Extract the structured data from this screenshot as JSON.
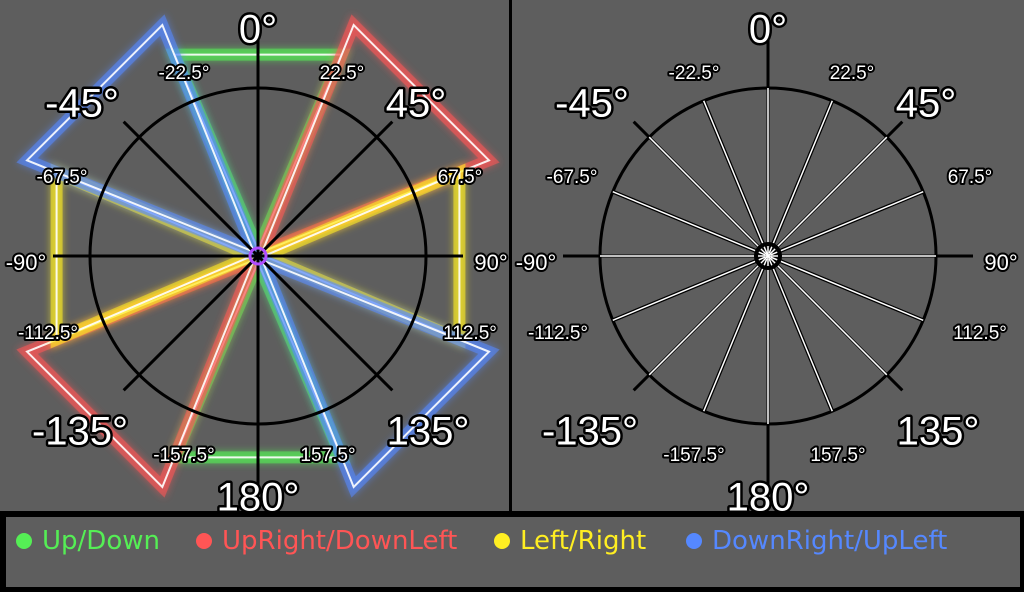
{
  "colors": {
    "up_down": "#55ee55",
    "upright_downleft": "#ff5555",
    "left_right": "#ffee22",
    "downright_upleft": "#5588ff",
    "panel_bg": "#5e5e5e",
    "border": "#000000"
  },
  "angle_labels": {
    "a0": "0°",
    "a45": "45°",
    "am45": "-45°",
    "a90": "90°",
    "am90": "-90°",
    "a135": "135°",
    "am135": "-135°",
    "a180": "180°",
    "a22_5": "22.5°",
    "am22_5": "-22.5°",
    "a67_5": "67.5°",
    "am67_5": "-67.5°",
    "a112_5": "112.5°",
    "am112_5": "-112.5°",
    "a157_5": "157.5°",
    "am157_5": "-157.5°"
  },
  "legend": {
    "items": [
      {
        "label": "Up/Down",
        "color_key": "up_down"
      },
      {
        "label": "UpRight/DownLeft",
        "color_key": "upright_downleft"
      },
      {
        "label": "Left/Right",
        "color_key": "left_right"
      },
      {
        "label": "DownRight/UpLeft",
        "color_key": "downright_upleft"
      }
    ]
  }
}
